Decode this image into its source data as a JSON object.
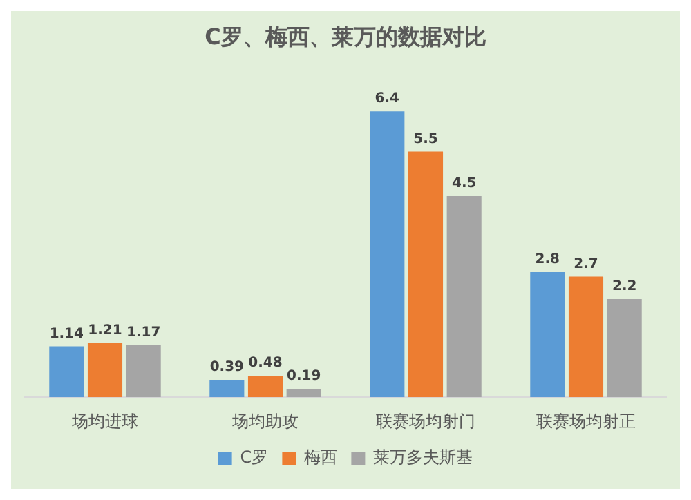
{
  "chart_data": {
    "type": "bar",
    "title": "C罗、梅西、莱万的数据对比",
    "categories": [
      "场均进球",
      "场均助攻",
      "联赛场均射门",
      "联赛场均射正"
    ],
    "series": [
      {
        "name": "C罗",
        "color": "#5b9bd5",
        "values": [
          1.14,
          0.39,
          6.4,
          2.8
        ]
      },
      {
        "name": "梅西",
        "color": "#ed7d31",
        "values": [
          1.21,
          0.48,
          5.5,
          2.7
        ]
      },
      {
        "name": "莱万多夫斯基",
        "color": "#a5a5a5",
        "values": [
          1.17,
          0.19,
          4.5,
          2.2
        ]
      }
    ],
    "data_labels": true,
    "legend": "bottom"
  }
}
